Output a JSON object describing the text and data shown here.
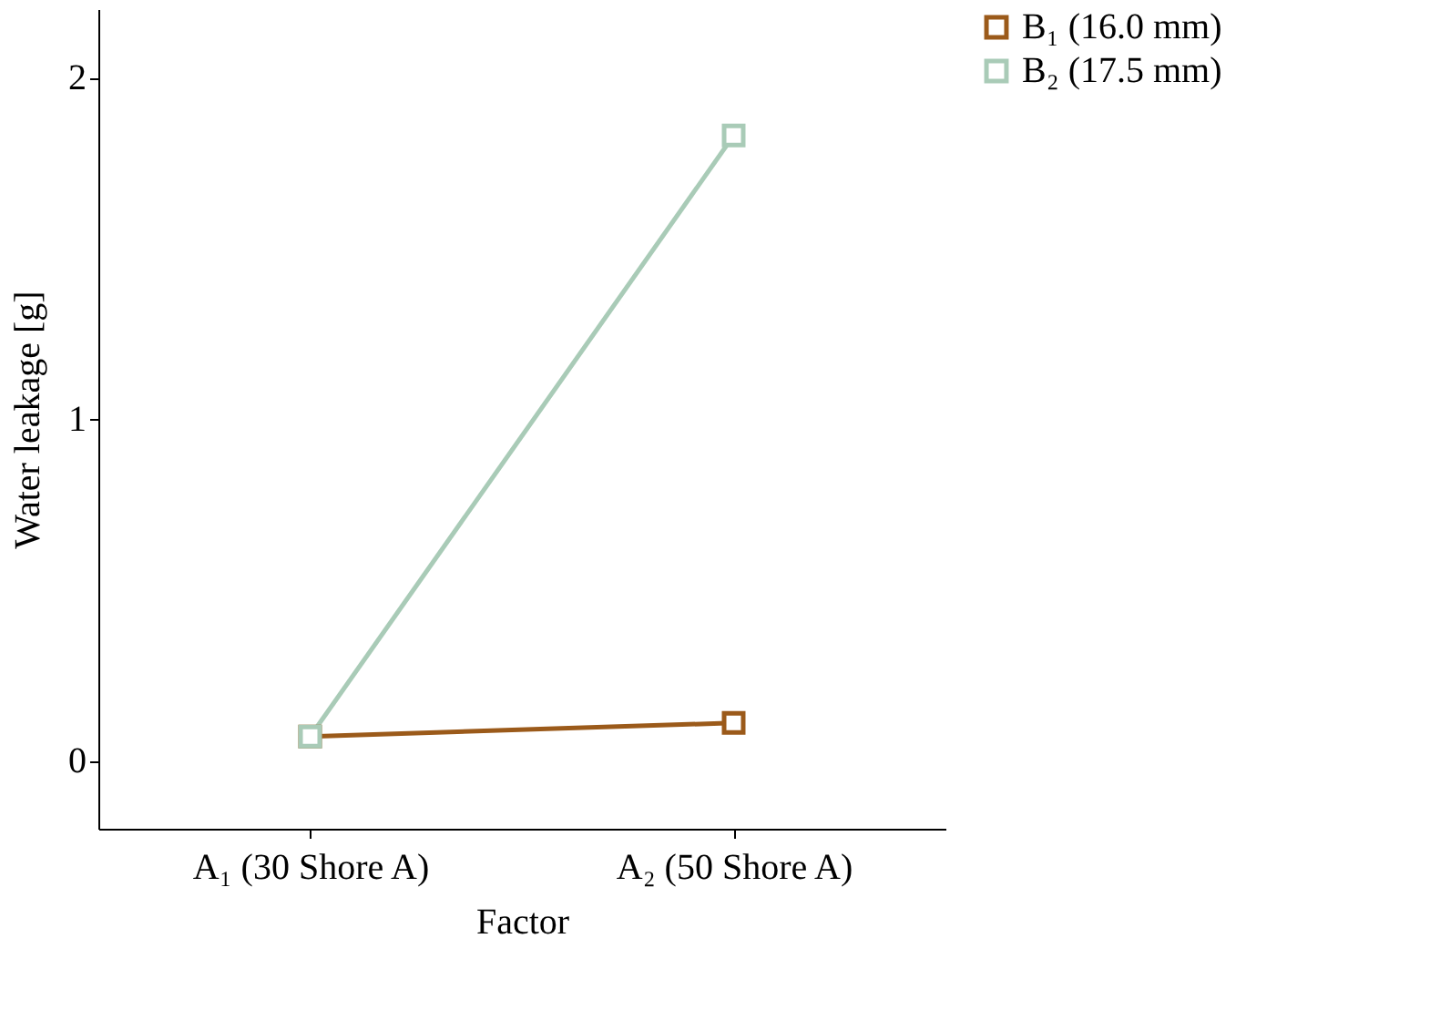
{
  "chart_data": {
    "type": "line",
    "xlabel": "Factor",
    "ylabel": "Water leakage [g]",
    "categories": [
      "A₁ (30 Shore A)",
      "A₂ (50 Shore A)"
    ],
    "series": [
      {
        "name": "B₁ (16.0 mm)",
        "color": "#9b5a1a",
        "values": [
          0.07,
          0.11
        ]
      },
      {
        "name": "B₂ (17.5 mm)",
        "color": "#a9cbb7",
        "values": [
          0.07,
          1.83
        ]
      }
    ],
    "ylim": [
      -0.2,
      2.2
    ],
    "yticks": [
      0,
      1,
      2
    ],
    "grid": false,
    "legend": "right",
    "marker": "square",
    "line_style": "solid"
  }
}
